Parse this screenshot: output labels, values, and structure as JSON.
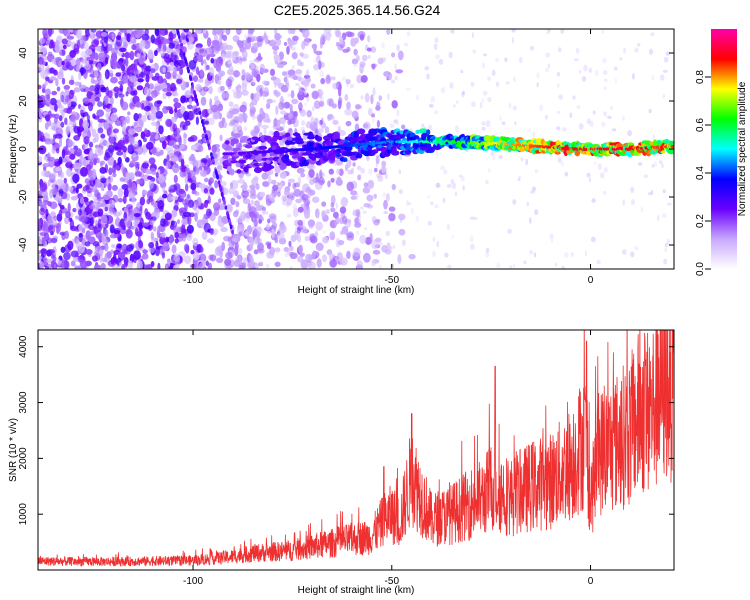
{
  "title": "C2E5.2025.365.14.56.G24",
  "chart_data": [
    {
      "type": "heatmap",
      "xlabel": "Height of straight line (km)",
      "ylabel": "Frequency (Hz)",
      "xlim": [
        -139,
        21
      ],
      "ylim": [
        -50,
        50
      ],
      "x_ticks": [
        -100,
        -50,
        0
      ],
      "y_ticks": [
        -40,
        -20,
        0,
        20,
        40
      ],
      "grid": false,
      "colorbar": {
        "label": "Normalized spectral amplitude",
        "range": [
          0.0,
          1.0
        ],
        "ticks": [
          "0.0",
          "0.2",
          "0.4",
          "0.6",
          "0.8"
        ],
        "colors": [
          "#ffffff",
          "#c8a8ff",
          "#6a00ff",
          "#0000ff",
          "#00ffff",
          "#00ff00",
          "#ffff00",
          "#ff0000",
          "#ff00aa"
        ]
      },
      "trend": {
        "description_points_km_hz_amp": [
          [
            -90,
            -2,
            0.25
          ],
          [
            -70,
            0,
            0.35
          ],
          [
            -50,
            3,
            0.45
          ],
          [
            -35,
            3,
            0.6
          ],
          [
            -20,
            2,
            0.8
          ],
          [
            -5,
            0,
            0.9
          ],
          [
            10,
            0,
            0.9
          ],
          [
            20,
            1,
            0.85
          ]
        ]
      }
    },
    {
      "type": "line",
      "xlabel": "Height of straight line (km)",
      "ylabel": "SNR (10 * v/v)",
      "xlim": [
        -139,
        21
      ],
      "ylim": [
        0,
        4300
      ],
      "x_ticks": [
        -100,
        -50,
        0
      ],
      "y_ticks": [
        1000,
        2000,
        3000,
        4000
      ],
      "color": "#ee3030",
      "series": [
        {
          "x": [
            -139,
            -130,
            -120,
            -110,
            -100,
            -90,
            -85,
            -80,
            -75,
            -70,
            -65,
            -60,
            -55,
            -52,
            -50,
            -48,
            -45,
            -40,
            -35,
            -30,
            -27,
            -25,
            -20,
            -15,
            -10,
            -5,
            -1,
            0,
            2,
            5,
            10,
            13,
            15,
            18,
            21
          ],
          "y": [
            160,
            150,
            150,
            160,
            170,
            240,
            300,
            320,
            350,
            420,
            480,
            550,
            600,
            900,
            1000,
            850,
            1700,
            900,
            1000,
            1200,
            1300,
            1500,
            1300,
            1500,
            1600,
            1900,
            2400,
            1200,
            2100,
            2200,
            2500,
            2900,
            2800,
            3300,
            3500
          ]
        }
      ],
      "spikes": [
        [
          -52,
          1850
        ],
        [
          -45,
          2800
        ],
        [
          -24,
          3650
        ],
        [
          -1,
          4100
        ],
        [
          17,
          4220
        ],
        [
          20,
          3900
        ]
      ]
    }
  ]
}
